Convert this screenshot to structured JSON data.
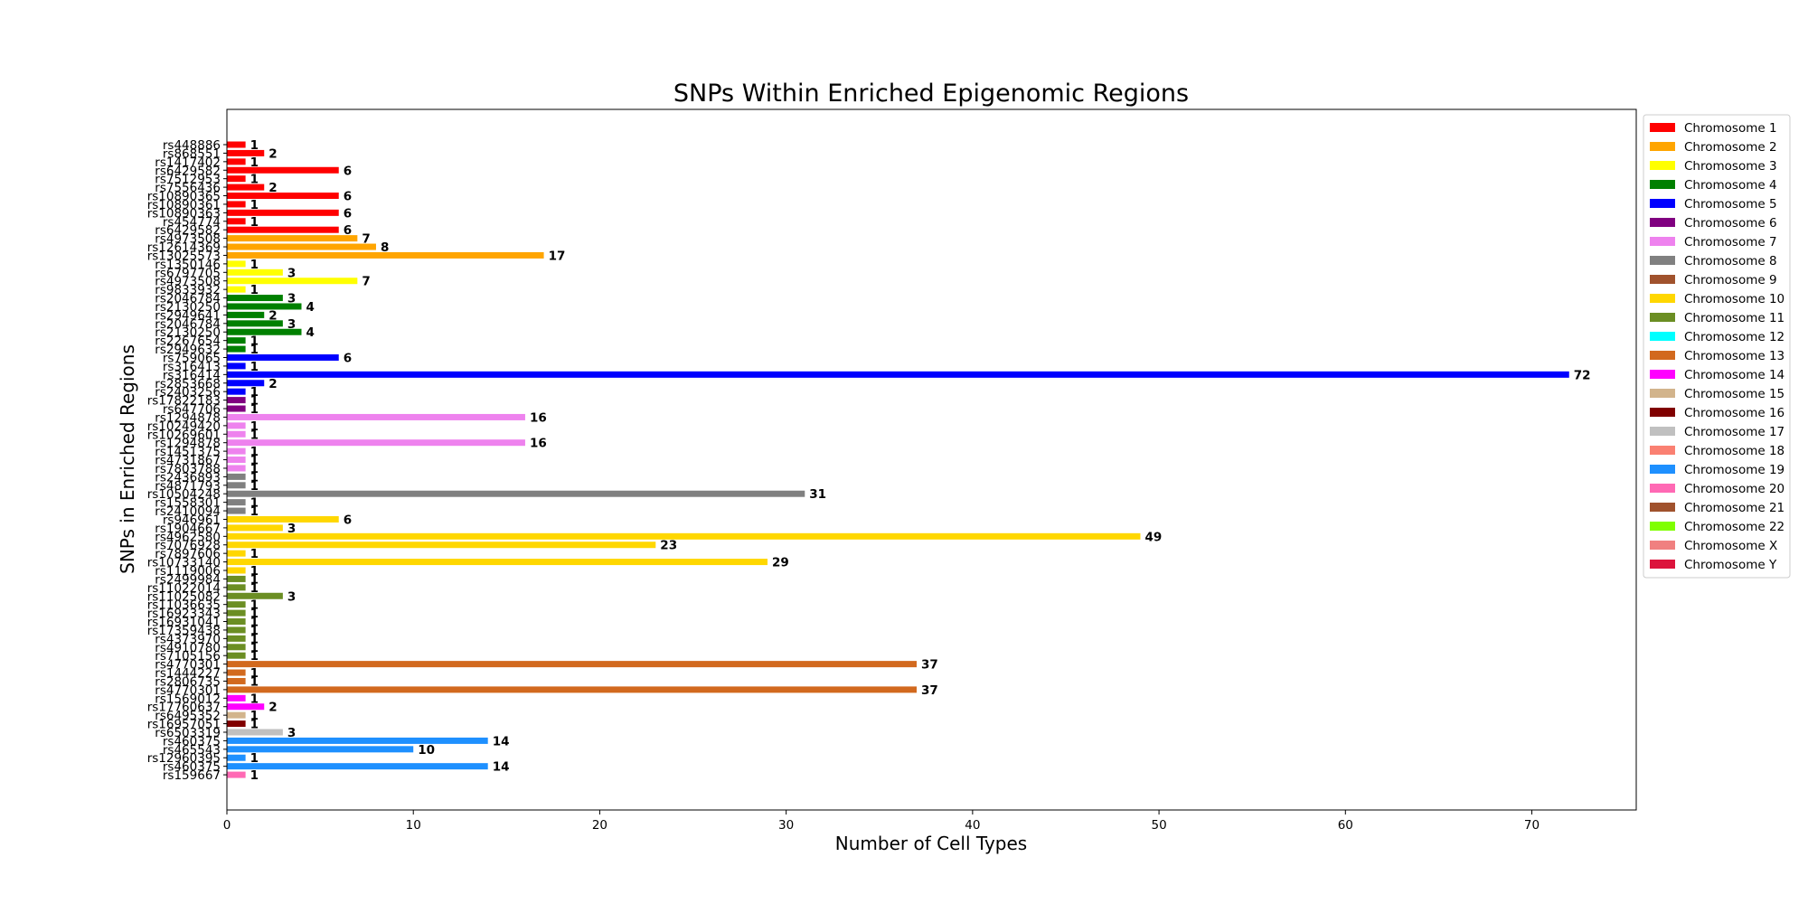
{
  "chart_data": {
    "type": "bar",
    "orientation": "horizontal",
    "title": "SNPs Within Enriched Epigenomic Regions",
    "xlabel": "Number of Cell Types",
    "ylabel": "SNPs in Enriched Regions",
    "xlim": [
      0,
      75.6
    ],
    "x_ticks": [
      0,
      10,
      20,
      30,
      40,
      50,
      60,
      70
    ],
    "grid": false,
    "legend_position": "outside-right-top",
    "legend": [
      {
        "name": "Chromosome 1",
        "color": "#ff0000"
      },
      {
        "name": "Chromosome 2",
        "color": "#ffa500"
      },
      {
        "name": "Chromosome 3",
        "color": "#ffff00"
      },
      {
        "name": "Chromosome 4",
        "color": "#008000"
      },
      {
        "name": "Chromosome 5",
        "color": "#0000ff"
      },
      {
        "name": "Chromosome 6",
        "color": "#800080"
      },
      {
        "name": "Chromosome 7",
        "color": "#ee82ee"
      },
      {
        "name": "Chromosome 8",
        "color": "#808080"
      },
      {
        "name": "Chromosome 9",
        "color": "#a0522d"
      },
      {
        "name": "Chromosome 10",
        "color": "#ffd700"
      },
      {
        "name": "Chromosome 11",
        "color": "#6b8e23"
      },
      {
        "name": "Chromosome 12",
        "color": "#00ffff"
      },
      {
        "name": "Chromosome 13",
        "color": "#d2691e"
      },
      {
        "name": "Chromosome 14",
        "color": "#ff00ff"
      },
      {
        "name": "Chromosome 15",
        "color": "#d2b48c"
      },
      {
        "name": "Chromosome 16",
        "color": "#800000"
      },
      {
        "name": "Chromosome 17",
        "color": "#c0c0c0"
      },
      {
        "name": "Chromosome 18",
        "color": "#fa8072"
      },
      {
        "name": "Chromosome 19",
        "color": "#1e90ff"
      },
      {
        "name": "Chromosome 20",
        "color": "#ff69b4"
      },
      {
        "name": "Chromosome 21",
        "color": "#a0522d"
      },
      {
        "name": "Chromosome 22",
        "color": "#7fff00"
      },
      {
        "name": "Chromosome X",
        "color": "#f08080"
      },
      {
        "name": "Chromosome Y",
        "color": "#dc143c"
      }
    ],
    "bars": [
      {
        "snp": "rs448886",
        "value": 1,
        "chromosome": "Chromosome 1"
      },
      {
        "snp": "rs868551",
        "value": 2,
        "chromosome": "Chromosome 1"
      },
      {
        "snp": "rs1417402",
        "value": 1,
        "chromosome": "Chromosome 1"
      },
      {
        "snp": "rs6429582",
        "value": 6,
        "chromosome": "Chromosome 1"
      },
      {
        "snp": "rs7512953",
        "value": 1,
        "chromosome": "Chromosome 1"
      },
      {
        "snp": "rs7556436",
        "value": 2,
        "chromosome": "Chromosome 1"
      },
      {
        "snp": "rs10890365",
        "value": 6,
        "chromosome": "Chromosome 1"
      },
      {
        "snp": "rs10890361",
        "value": 1,
        "chromosome": "Chromosome 1"
      },
      {
        "snp": "rs10890363",
        "value": 6,
        "chromosome": "Chromosome 1"
      },
      {
        "snp": "rs454774",
        "value": 1,
        "chromosome": "Chromosome 1"
      },
      {
        "snp": "rs6429582",
        "value": 6,
        "chromosome": "Chromosome 1"
      },
      {
        "snp": "rs4973508",
        "value": 7,
        "chromosome": "Chromosome 2"
      },
      {
        "snp": "rs12614369",
        "value": 8,
        "chromosome": "Chromosome 2"
      },
      {
        "snp": "rs13025573",
        "value": 17,
        "chromosome": "Chromosome 2"
      },
      {
        "snp": "rs1350146",
        "value": 1,
        "chromosome": "Chromosome 3"
      },
      {
        "snp": "rs6797705",
        "value": 3,
        "chromosome": "Chromosome 3"
      },
      {
        "snp": "rs4973508",
        "value": 7,
        "chromosome": "Chromosome 3"
      },
      {
        "snp": "rs9833932",
        "value": 1,
        "chromosome": "Chromosome 3"
      },
      {
        "snp": "rs2046784",
        "value": 3,
        "chromosome": "Chromosome 4"
      },
      {
        "snp": "rs2130250",
        "value": 4,
        "chromosome": "Chromosome 4"
      },
      {
        "snp": "rs2949641",
        "value": 2,
        "chromosome": "Chromosome 4"
      },
      {
        "snp": "rs2046784",
        "value": 3,
        "chromosome": "Chromosome 4"
      },
      {
        "snp": "rs2130250",
        "value": 4,
        "chromosome": "Chromosome 4"
      },
      {
        "snp": "rs2267654",
        "value": 1,
        "chromosome": "Chromosome 4"
      },
      {
        "snp": "rs2949632",
        "value": 1,
        "chromosome": "Chromosome 4"
      },
      {
        "snp": "rs759065",
        "value": 6,
        "chromosome": "Chromosome 5"
      },
      {
        "snp": "rs316413",
        "value": 1,
        "chromosome": "Chromosome 5"
      },
      {
        "snp": "rs316414",
        "value": 72,
        "chromosome": "Chromosome 5"
      },
      {
        "snp": "rs2853668",
        "value": 2,
        "chromosome": "Chromosome 5"
      },
      {
        "snp": "rs2403256",
        "value": 1,
        "chromosome": "Chromosome 5"
      },
      {
        "snp": "rs17822183",
        "value": 1,
        "chromosome": "Chromosome 6"
      },
      {
        "snp": "rs647706",
        "value": 1,
        "chromosome": "Chromosome 6"
      },
      {
        "snp": "rs1294878",
        "value": 16,
        "chromosome": "Chromosome 7"
      },
      {
        "snp": "rs10249420",
        "value": 1,
        "chromosome": "Chromosome 7"
      },
      {
        "snp": "rs10269601",
        "value": 1,
        "chromosome": "Chromosome 7"
      },
      {
        "snp": "rs1294878",
        "value": 16,
        "chromosome": "Chromosome 7"
      },
      {
        "snp": "rs1451375",
        "value": 1,
        "chromosome": "Chromosome 7"
      },
      {
        "snp": "rs4731867",
        "value": 1,
        "chromosome": "Chromosome 7"
      },
      {
        "snp": "rs7803788",
        "value": 1,
        "chromosome": "Chromosome 7"
      },
      {
        "snp": "rs2436893",
        "value": 1,
        "chromosome": "Chromosome 8"
      },
      {
        "snp": "rs4871793",
        "value": 1,
        "chromosome": "Chromosome 8"
      },
      {
        "snp": "rs10504248",
        "value": 31,
        "chromosome": "Chromosome 8"
      },
      {
        "snp": "rs1558301",
        "value": 1,
        "chromosome": "Chromosome 8"
      },
      {
        "snp": "rs2410094",
        "value": 1,
        "chromosome": "Chromosome 8"
      },
      {
        "snp": "rs946961",
        "value": 6,
        "chromosome": "Chromosome 10"
      },
      {
        "snp": "rs1904667",
        "value": 3,
        "chromosome": "Chromosome 10"
      },
      {
        "snp": "rs4962580",
        "value": 49,
        "chromosome": "Chromosome 10"
      },
      {
        "snp": "rs7076928",
        "value": 23,
        "chromosome": "Chromosome 10"
      },
      {
        "snp": "rs7897606",
        "value": 1,
        "chromosome": "Chromosome 10"
      },
      {
        "snp": "rs10733140",
        "value": 29,
        "chromosome": "Chromosome 10"
      },
      {
        "snp": "rs1119006",
        "value": 1,
        "chromosome": "Chromosome 10"
      },
      {
        "snp": "rs2499984",
        "value": 1,
        "chromosome": "Chromosome 11"
      },
      {
        "snp": "rs11022014",
        "value": 1,
        "chromosome": "Chromosome 11"
      },
      {
        "snp": "rs11025082",
        "value": 3,
        "chromosome": "Chromosome 11"
      },
      {
        "snp": "rs11036635",
        "value": 1,
        "chromosome": "Chromosome 11"
      },
      {
        "snp": "rs16923343",
        "value": 1,
        "chromosome": "Chromosome 11"
      },
      {
        "snp": "rs16931041",
        "value": 1,
        "chromosome": "Chromosome 11"
      },
      {
        "snp": "rs17359438",
        "value": 1,
        "chromosome": "Chromosome 11"
      },
      {
        "snp": "rs4373970",
        "value": 1,
        "chromosome": "Chromosome 11"
      },
      {
        "snp": "rs4910780",
        "value": 1,
        "chromosome": "Chromosome 11"
      },
      {
        "snp": "rs7105156",
        "value": 1,
        "chromosome": "Chromosome 11"
      },
      {
        "snp": "rs4770301",
        "value": 37,
        "chromosome": "Chromosome 13"
      },
      {
        "snp": "rs1444227",
        "value": 1,
        "chromosome": "Chromosome 13"
      },
      {
        "snp": "rs2806735",
        "value": 1,
        "chromosome": "Chromosome 13"
      },
      {
        "snp": "rs4770301",
        "value": 37,
        "chromosome": "Chromosome 13"
      },
      {
        "snp": "rs1569012",
        "value": 1,
        "chromosome": "Chromosome 14"
      },
      {
        "snp": "rs17760637",
        "value": 2,
        "chromosome": "Chromosome 14"
      },
      {
        "snp": "rs6495352",
        "value": 1,
        "chromosome": "Chromosome 15"
      },
      {
        "snp": "rs16957051",
        "value": 1,
        "chromosome": "Chromosome 16"
      },
      {
        "snp": "rs6503319",
        "value": 3,
        "chromosome": "Chromosome 17"
      },
      {
        "snp": "rs460375",
        "value": 14,
        "chromosome": "Chromosome 19"
      },
      {
        "snp": "rs465543",
        "value": 10,
        "chromosome": "Chromosome 19"
      },
      {
        "snp": "rs12960395",
        "value": 1,
        "chromosome": "Chromosome 19"
      },
      {
        "snp": "rs460375",
        "value": 14,
        "chromosome": "Chromosome 19"
      },
      {
        "snp": "rs159667",
        "value": 1,
        "chromosome": "Chromosome 20"
      }
    ]
  }
}
